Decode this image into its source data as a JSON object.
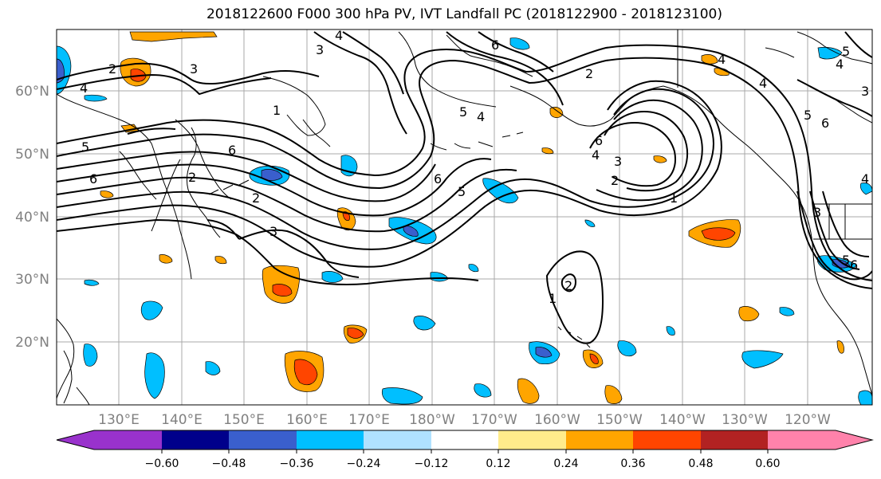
{
  "title": "2018122600 F000 300 hPa PV, IVT Landfall PC (2018122900 - 2018123100)",
  "lat_labels": [
    "60°N",
    "50°N",
    "40°N",
    "30°N",
    "20°N"
  ],
  "lon_labels": [
    "130°E",
    "140°E",
    "150°E",
    "160°E",
    "170°E",
    "180°W",
    "170°W",
    "160°W",
    "150°W",
    "140°W",
    "130°W",
    "120°W"
  ],
  "colorbar": {
    "tick_labels": [
      "−0.60",
      "−0.48",
      "−0.36",
      "−0.24",
      "−0.12",
      "0.12",
      "0.24",
      "0.36",
      "0.48",
      "0.60"
    ],
    "colors": [
      "#9932cc",
      "#00008b",
      "#3a5fcd",
      "#00bfff",
      "#b0e2ff",
      "#ffffff",
      "#ffec8b",
      "#ffa500",
      "#ff4500",
      "#b22222",
      "#ff82ab"
    ]
  },
  "contour_labels": [
    "1",
    "2",
    "3",
    "4",
    "5",
    "6",
    "1",
    "2",
    "3",
    "4",
    "5",
    "6",
    "1",
    "2",
    "3",
    "4",
    "5",
    "6",
    "2",
    "4",
    "1",
    "2"
  ]
}
